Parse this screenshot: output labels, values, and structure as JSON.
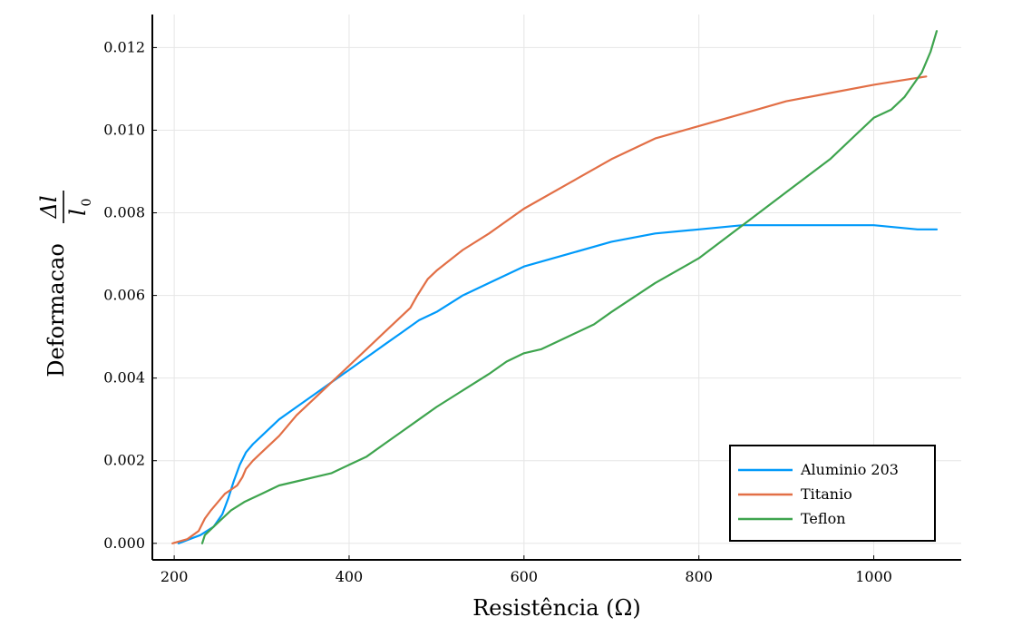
{
  "chart_data": {
    "type": "line",
    "xlabel": "Resistência (Ω)",
    "ylabel_text": "Deformacao",
    "ylabel_fraction": {
      "numerator": "Δl",
      "denominator": "l",
      "denominator_sub": "0"
    },
    "xlim": [
      175,
      1100
    ],
    "ylim": [
      -0.0004,
      0.0128
    ],
    "x_ticks": [
      200,
      400,
      600,
      800,
      1000
    ],
    "x_tick_labels": [
      "200",
      "400",
      "600",
      "800",
      "1000"
    ],
    "y_ticks": [
      0.0,
      0.002,
      0.004,
      0.006,
      0.008,
      0.01,
      0.012
    ],
    "y_tick_labels": [
      "0.000",
      "0.002",
      "0.004",
      "0.006",
      "0.008",
      "0.010",
      "0.012"
    ],
    "grid": true,
    "legend_position": "bottom-right",
    "series": [
      {
        "name": "Aluminio 203",
        "color": "#009AFA",
        "x": [
          205,
          230,
          245,
          255,
          262,
          268,
          275,
          282,
          290,
          300,
          320,
          340,
          360,
          380,
          400,
          420,
          440,
          460,
          480,
          500,
          530,
          560,
          600,
          650,
          700,
          750,
          800,
          850,
          900,
          950,
          1000,
          1050,
          1072
        ],
        "y": [
          0.0,
          0.0002,
          0.0004,
          0.0007,
          0.0011,
          0.0015,
          0.0019,
          0.0022,
          0.0024,
          0.0026,
          0.003,
          0.0033,
          0.0036,
          0.0039,
          0.0042,
          0.0045,
          0.0048,
          0.0051,
          0.0054,
          0.0056,
          0.006,
          0.0063,
          0.0067,
          0.007,
          0.0073,
          0.0075,
          0.0076,
          0.0077,
          0.0077,
          0.0077,
          0.0077,
          0.0076,
          0.0076
        ]
      },
      {
        "name": "Titanio",
        "color": "#E26F46",
        "x": [
          198,
          215,
          228,
          235,
          242,
          250,
          258,
          265,
          272,
          278,
          282,
          290,
          300,
          320,
          340,
          360,
          380,
          400,
          420,
          440,
          460,
          470,
          478,
          490,
          500,
          530,
          560,
          600,
          650,
          700,
          750,
          800,
          850,
          900,
          950,
          1000,
          1030,
          1060
        ],
        "y": [
          0.0,
          0.0001,
          0.0003,
          0.0006,
          0.0008,
          0.001,
          0.0012,
          0.0013,
          0.0014,
          0.0016,
          0.0018,
          0.002,
          0.0022,
          0.0026,
          0.0031,
          0.0035,
          0.0039,
          0.0043,
          0.0047,
          0.0051,
          0.0055,
          0.0057,
          0.006,
          0.0064,
          0.0066,
          0.0071,
          0.0075,
          0.0081,
          0.0087,
          0.0093,
          0.0098,
          0.0101,
          0.0104,
          0.0107,
          0.0109,
          0.0111,
          0.0112,
          0.0113
        ]
      },
      {
        "name": "Teflon",
        "color": "#3EA44E",
        "x": [
          232,
          235,
          245,
          255,
          265,
          280,
          300,
          320,
          340,
          360,
          380,
          400,
          420,
          440,
          460,
          480,
          500,
          530,
          560,
          580,
          600,
          620,
          650,
          680,
          700,
          750,
          800,
          850,
          900,
          950,
          980,
          1000,
          1020,
          1035,
          1045,
          1055,
          1065,
          1072
        ],
        "y": [
          0.0,
          0.0002,
          0.0004,
          0.0006,
          0.0008,
          0.001,
          0.0012,
          0.0014,
          0.0015,
          0.0016,
          0.0017,
          0.0019,
          0.0021,
          0.0024,
          0.0027,
          0.003,
          0.0033,
          0.0037,
          0.0041,
          0.0044,
          0.0046,
          0.0047,
          0.005,
          0.0053,
          0.0056,
          0.0063,
          0.0069,
          0.0077,
          0.0085,
          0.0093,
          0.0099,
          0.0103,
          0.0105,
          0.0108,
          0.0111,
          0.0114,
          0.0119,
          0.0124
        ]
      }
    ]
  }
}
